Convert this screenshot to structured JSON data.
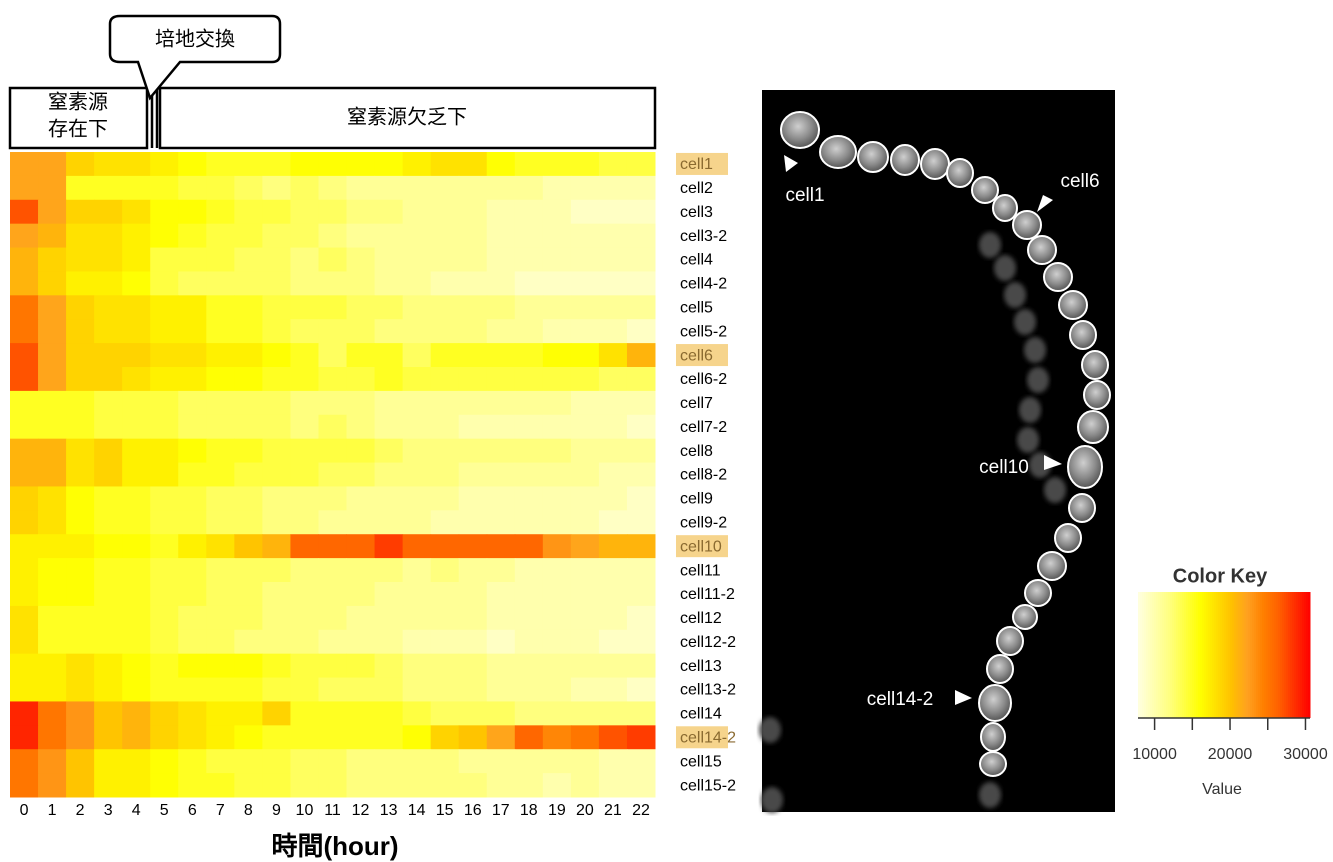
{
  "chart_data": {
    "type": "heatmap",
    "x_label": "時間(hour)",
    "x": [
      0,
      1,
      2,
      3,
      4,
      5,
      6,
      7,
      8,
      9,
      10,
      11,
      12,
      13,
      14,
      15,
      16,
      17,
      18,
      19,
      20,
      21,
      22
    ],
    "rows": [
      "cell1",
      "cell2",
      "cell3",
      "cell3-2",
      "cell4",
      "cell4-2",
      "cell5",
      "cell5-2",
      "cell6",
      "cell6-2",
      "cell7",
      "cell7-2",
      "cell8",
      "cell8-2",
      "cell9",
      "cell9-2",
      "cell10",
      "cell11",
      "cell11-2",
      "cell12",
      "cell12-2",
      "cell13",
      "cell13-2",
      "cell14",
      "cell14-2",
      "cell15",
      "cell15-2"
    ],
    "highlighted_rows": [
      0,
      8,
      16,
      24
    ],
    "values": [
      [
        22000,
        22000,
        19000,
        18000,
        18000,
        17000,
        16000,
        15000,
        15000,
        15000,
        16000,
        16000,
        16000,
        16000,
        17000,
        18000,
        18000,
        16000,
        15000,
        15000,
        15000,
        14000,
        14000
      ],
      [
        22000,
        22000,
        15000,
        15000,
        15000,
        15000,
        14000,
        14000,
        13000,
        12000,
        13000,
        12000,
        11000,
        11000,
        11000,
        11000,
        11000,
        11000,
        11000,
        10000,
        10000,
        10000,
        10000
      ],
      [
        27000,
        22000,
        19000,
        19000,
        18000,
        16000,
        16000,
        15000,
        14000,
        14000,
        13000,
        13000,
        12000,
        12000,
        11000,
        11000,
        11000,
        10000,
        10000,
        10000,
        9000,
        9000,
        9000
      ],
      [
        22000,
        21000,
        18000,
        18000,
        17000,
        16000,
        15000,
        14000,
        14000,
        13000,
        13000,
        12000,
        11000,
        11000,
        11000,
        11000,
        11000,
        10000,
        10000,
        10000,
        10000,
        10000,
        10000
      ],
      [
        21000,
        19000,
        18000,
        18000,
        17000,
        14000,
        14000,
        14000,
        13000,
        13000,
        12000,
        13000,
        12000,
        11000,
        11000,
        11000,
        11000,
        10000,
        10000,
        10000,
        10000,
        10000,
        10000
      ],
      [
        21000,
        19000,
        17000,
        17000,
        16000,
        14000,
        13000,
        13000,
        13000,
        13000,
        12000,
        12000,
        12000,
        11000,
        11000,
        10000,
        10000,
        10000,
        9000,
        9000,
        9000,
        9000,
        9000
      ],
      [
        25000,
        22000,
        19000,
        18000,
        18000,
        17000,
        17000,
        15000,
        15000,
        14000,
        14000,
        14000,
        13000,
        13000,
        12000,
        12000,
        12000,
        12000,
        11000,
        11000,
        11000,
        11000,
        11000
      ],
      [
        25000,
        22000,
        19000,
        18000,
        18000,
        17000,
        17000,
        15000,
        15000,
        14000,
        13000,
        13000,
        13000,
        12000,
        12000,
        12000,
        12000,
        11000,
        11000,
        10000,
        10000,
        10000,
        9000
      ],
      [
        27000,
        22000,
        19000,
        19000,
        19000,
        18000,
        18000,
        17000,
        17000,
        16000,
        15000,
        13000,
        15000,
        15000,
        13000,
        15000,
        15000,
        15000,
        15000,
        16000,
        16000,
        18000,
        21000
      ],
      [
        27000,
        22000,
        19000,
        19000,
        18000,
        17000,
        17000,
        16000,
        16000,
        15000,
        15000,
        14000,
        14000,
        15000,
        14000,
        14000,
        14000,
        14000,
        14000,
        14000,
        14000,
        13000,
        13000
      ],
      [
        15000,
        15000,
        15000,
        14000,
        14000,
        14000,
        13000,
        13000,
        13000,
        13000,
        12000,
        12000,
        12000,
        11000,
        11000,
        11000,
        11000,
        11000,
        11000,
        11000,
        10000,
        10000,
        10000
      ],
      [
        15000,
        15000,
        15000,
        14000,
        14000,
        14000,
        13000,
        13000,
        13000,
        13000,
        12000,
        13000,
        12000,
        11000,
        11000,
        11000,
        10000,
        10000,
        10000,
        10000,
        10000,
        10000,
        9000
      ],
      [
        21000,
        21000,
        18000,
        19000,
        17000,
        17000,
        16000,
        15000,
        15000,
        14000,
        14000,
        14000,
        14000,
        13000,
        12000,
        12000,
        12000,
        12000,
        12000,
        12000,
        11000,
        11000,
        11000
      ],
      [
        21000,
        21000,
        18000,
        19000,
        17000,
        17000,
        15000,
        15000,
        14000,
        14000,
        14000,
        13000,
        13000,
        12000,
        12000,
        12000,
        11000,
        11000,
        11000,
        11000,
        11000,
        10000,
        10000
      ],
      [
        19000,
        18000,
        16000,
        15000,
        15000,
        14000,
        14000,
        13000,
        13000,
        12000,
        12000,
        12000,
        11000,
        11000,
        11000,
        11000,
        10000,
        10000,
        10000,
        10000,
        10000,
        10000,
        9000
      ],
      [
        19000,
        18000,
        16000,
        15000,
        15000,
        14000,
        14000,
        13000,
        13000,
        12000,
        12000,
        11000,
        11000,
        11000,
        11000,
        10000,
        10000,
        10000,
        10000,
        10000,
        10000,
        9000,
        9000
      ],
      [
        17000,
        17000,
        17000,
        16000,
        16000,
        15000,
        17000,
        18000,
        20000,
        21000,
        26000,
        26000,
        26000,
        28000,
        26000,
        26000,
        26000,
        26000,
        26000,
        23000,
        22000,
        21000,
        21000
      ],
      [
        17000,
        16000,
        16000,
        15000,
        15000,
        14000,
        14000,
        13000,
        13000,
        13000,
        12000,
        12000,
        12000,
        12000,
        11000,
        12000,
        11000,
        11000,
        10000,
        10000,
        10000,
        10000,
        10000
      ],
      [
        17000,
        16000,
        16000,
        15000,
        15000,
        14000,
        14000,
        13000,
        13000,
        12000,
        12000,
        12000,
        12000,
        11000,
        11000,
        11000,
        11000,
        10000,
        10000,
        10000,
        10000,
        10000,
        10000
      ],
      [
        18000,
        15000,
        15000,
        15000,
        15000,
        14000,
        13000,
        13000,
        13000,
        12000,
        12000,
        12000,
        11000,
        11000,
        11000,
        11000,
        11000,
        10000,
        10000,
        10000,
        10000,
        10000,
        9000
      ],
      [
        18000,
        15000,
        15000,
        15000,
        15000,
        14000,
        13000,
        13000,
        12000,
        12000,
        12000,
        11000,
        11000,
        11000,
        10000,
        10000,
        10000,
        9000,
        10000,
        10000,
        10000,
        9000,
        9000
      ],
      [
        17000,
        17000,
        18000,
        17000,
        16000,
        15000,
        16000,
        16000,
        16000,
        15000,
        14000,
        14000,
        14000,
        13000,
        12000,
        12000,
        12000,
        11000,
        11000,
        11000,
        11000,
        11000,
        11000
      ],
      [
        17000,
        17000,
        18000,
        17000,
        16000,
        15000,
        15000,
        15000,
        15000,
        14000,
        14000,
        13000,
        13000,
        13000,
        12000,
        12000,
        12000,
        11000,
        11000,
        11000,
        10000,
        10000,
        9000
      ],
      [
        29000,
        25000,
        23000,
        20000,
        21000,
        19000,
        18000,
        17000,
        17000,
        19000,
        15000,
        15000,
        15000,
        15000,
        14000,
        13000,
        13000,
        13000,
        12000,
        12000,
        12000,
        12000,
        12000
      ],
      [
        29000,
        25000,
        23000,
        20000,
        21000,
        19000,
        18000,
        17000,
        16000,
        15000,
        15000,
        15000,
        15000,
        15000,
        16000,
        19000,
        20000,
        22000,
        26000,
        24000,
        25000,
        27000,
        28000
      ],
      [
        25000,
        23000,
        20000,
        17000,
        17000,
        16000,
        15000,
        14000,
        14000,
        14000,
        13000,
        13000,
        12000,
        12000,
        12000,
        12000,
        11000,
        11000,
        11000,
        11000,
        11000,
        10000,
        10000
      ],
      [
        25000,
        23000,
        20000,
        17000,
        17000,
        16000,
        15000,
        15000,
        14000,
        14000,
        13000,
        13000,
        12000,
        12000,
        12000,
        12000,
        12000,
        11000,
        11000,
        10000,
        11000,
        10000,
        10000
      ]
    ],
    "colors": [
      "#ffffe0",
      "#ffffb0",
      "#ffff80",
      "#ffff40",
      "#ffff00",
      "#ffe000",
      "#ffc000",
      "#ffa020",
      "#ff8000",
      "#ff6000",
      "#ff3000",
      "#ff0000"
    ],
    "zlim": [
      7800,
      30600
    ],
    "colorbar_title": "Color Key",
    "colorbar_label": "Value",
    "colorbar_ticks": [
      10000,
      20000,
      30000
    ],
    "colorbar_minor_ticks": [
      15000,
      25000
    ]
  },
  "annotations": {
    "before": [
      "窒素源",
      "存在下"
    ],
    "after": "窒素源欠乏下",
    "medium_change": "培地交換"
  },
  "image": {
    "labels": [
      "cell1",
      "cell6",
      "cell10",
      "cell14-2"
    ]
  }
}
